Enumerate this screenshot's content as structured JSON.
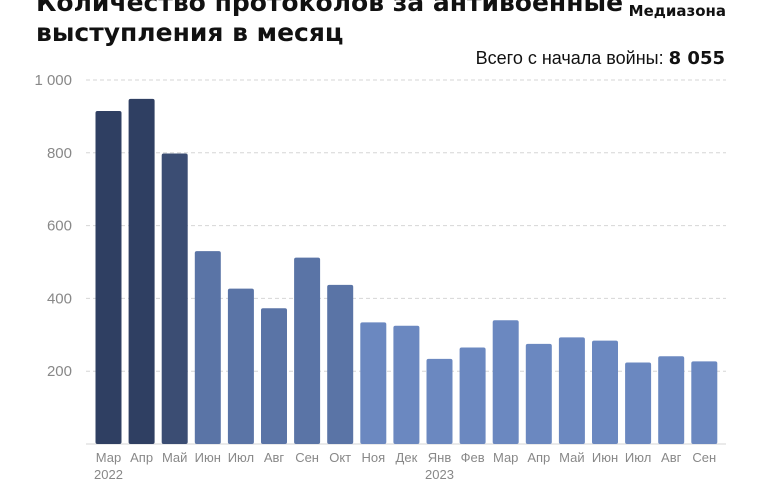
{
  "header": {
    "title_line1": "Количество протоколов за антивоенные",
    "title_line2": "выступления в месяц",
    "brand": "Медиазона",
    "total_label": "Всего с начала войны:",
    "total_value": "8 055"
  },
  "chart_data": {
    "type": "bar",
    "title": "Количество протоколов за антивоенные выступления в месяц",
    "categories": [
      "Мар",
      "Апр",
      "Май",
      "Июн",
      "Июл",
      "Авг",
      "Сен",
      "Окт",
      "Ноя",
      "Дек",
      "Янв",
      "Фев",
      "Мар",
      "Апр",
      "Май",
      "Июн",
      "Июл",
      "Авг",
      "Сен"
    ],
    "year_labels": [
      {
        "index": 0,
        "label": "2022"
      },
      {
        "index": 10,
        "label": "2023"
      }
    ],
    "values": [
      915,
      948,
      798,
      530,
      427,
      373,
      512,
      437,
      334,
      325,
      234,
      265,
      340,
      275,
      293,
      284,
      224,
      241,
      227
    ],
    "bar_colors": [
      "#2f3f62",
      "#2f3f62",
      "#3b4d73",
      "#5a74a6",
      "#5a74a6",
      "#5a74a6",
      "#5a74a6",
      "#5a74a6",
      "#6b88c0",
      "#6b88c0",
      "#6b88c0",
      "#6b88c0",
      "#6b88c0",
      "#6b88c0",
      "#6b88c0",
      "#6b88c0",
      "#6b88c0",
      "#6b88c0",
      "#6b88c0"
    ],
    "yticks": [
      200,
      400,
      600,
      800,
      1000
    ],
    "ytick_labels": [
      "200",
      "400",
      "600",
      "800",
      "1 000"
    ],
    "ylim": [
      0,
      1000
    ],
    "grid": true,
    "xlabel": "",
    "ylabel": "",
    "colors": {
      "text": "#111111",
      "axis_text": "#888888",
      "grid": "#d6d6d6"
    }
  }
}
